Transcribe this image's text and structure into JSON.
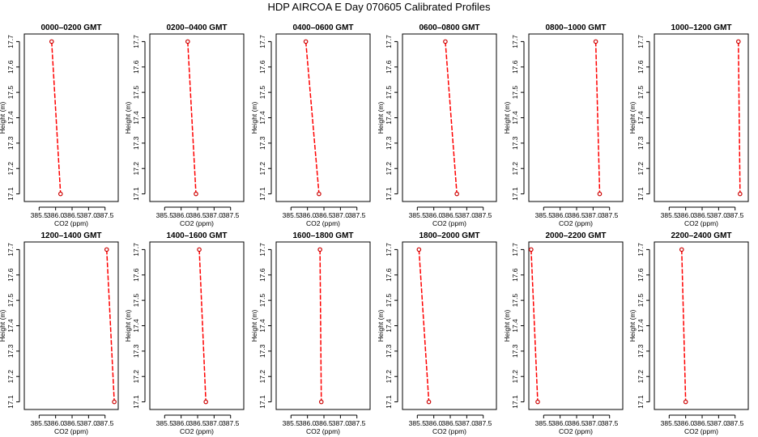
{
  "title": "HDP AIRCOA E  Day 070605  Calibrated Profiles",
  "colors": {
    "line": "#ff0000",
    "point": "#cc0000",
    "axis": "#000000"
  },
  "chart_data": [
    {
      "type": "line",
      "title": "0000–0200 GMT",
      "xlabel": "CO2 (ppm)",
      "ylabel": "Height (m)",
      "xlim": [
        385.05,
        387.9
      ],
      "ylim": [
        17.07,
        17.73
      ],
      "x_ticks": [
        "385.5",
        "386.0",
        "386.5",
        "387.0",
        "387.5"
      ],
      "y_ticks": [
        "17.1",
        "17.2",
        "17.3",
        "17.4",
        "17.5",
        "17.6",
        "17.7"
      ],
      "grid": false,
      "series": [
        {
          "x": [
            385.88,
            386.15
          ],
          "y": [
            17.7,
            17.1
          ]
        }
      ]
    },
    {
      "type": "line",
      "title": "0200–0400 GMT",
      "xlabel": "CO2 (ppm)",
      "ylabel": "Height (m)",
      "xlim": [
        385.05,
        387.9
      ],
      "ylim": [
        17.07,
        17.73
      ],
      "x_ticks": [
        "385.5",
        "386.0",
        "386.5",
        "387.0",
        "387.5"
      ],
      "y_ticks": [
        "17.1",
        "17.2",
        "17.3",
        "17.4",
        "17.5",
        "17.6",
        "17.7"
      ],
      "grid": false,
      "series": [
        {
          "x": [
            386.2,
            386.45
          ],
          "y": [
            17.7,
            17.1
          ]
        }
      ]
    },
    {
      "type": "line",
      "title": "0400–0600 GMT",
      "xlabel": "CO2 (ppm)",
      "ylabel": "Height (m)",
      "xlim": [
        385.05,
        387.9
      ],
      "ylim": [
        17.07,
        17.73
      ],
      "x_ticks": [
        "385.5",
        "386.0",
        "386.5",
        "387.0",
        "387.5"
      ],
      "y_ticks": [
        "17.1",
        "17.2",
        "17.3",
        "17.4",
        "17.5",
        "17.6",
        "17.7"
      ],
      "grid": false,
      "series": [
        {
          "x": [
            385.95,
            386.35
          ],
          "y": [
            17.7,
            17.1
          ]
        }
      ]
    },
    {
      "type": "line",
      "title": "0600–0800 GMT",
      "xlabel": "CO2 (ppm)",
      "ylabel": "Height (m)",
      "xlim": [
        385.05,
        387.9
      ],
      "ylim": [
        17.07,
        17.73
      ],
      "x_ticks": [
        "385.5",
        "386.0",
        "386.5",
        "387.0",
        "387.5"
      ],
      "y_ticks": [
        "17.1",
        "17.2",
        "17.3",
        "17.4",
        "17.5",
        "17.6",
        "17.7"
      ],
      "grid": false,
      "series": [
        {
          "x": [
            386.35,
            386.7
          ],
          "y": [
            17.7,
            17.1
          ]
        }
      ]
    },
    {
      "type": "line",
      "title": "0800–1000 GMT",
      "xlabel": "CO2 (ppm)",
      "ylabel": "Height (m)",
      "xlim": [
        385.05,
        387.9
      ],
      "ylim": [
        17.07,
        17.73
      ],
      "x_ticks": [
        "385.5",
        "386.0",
        "386.5",
        "387.0",
        "387.5"
      ],
      "y_ticks": [
        "17.1",
        "17.2",
        "17.3",
        "17.4",
        "17.5",
        "17.6",
        "17.7"
      ],
      "grid": false,
      "series": [
        {
          "x": [
            387.08,
            387.2
          ],
          "y": [
            17.7,
            17.1
          ]
        }
      ]
    },
    {
      "type": "line",
      "title": "1000–1200 GMT",
      "xlabel": "CO2 (ppm)",
      "ylabel": "Height (m)",
      "xlim": [
        385.05,
        387.9
      ],
      "ylim": [
        17.07,
        17.73
      ],
      "x_ticks": [
        "385.5",
        "386.0",
        "386.5",
        "387.0",
        "387.5"
      ],
      "y_ticks": [
        "17.1",
        "17.2",
        "17.3",
        "17.4",
        "17.5",
        "17.6",
        "17.7"
      ],
      "grid": false,
      "series": [
        {
          "x": [
            387.6,
            387.65
          ],
          "y": [
            17.7,
            17.1
          ]
        }
      ]
    },
    {
      "type": "line",
      "title": "1200–1400 GMT",
      "xlabel": "CO2 (ppm)",
      "ylabel": "Height (m)",
      "xlim": [
        385.05,
        387.9
      ],
      "ylim": [
        17.07,
        17.73
      ],
      "x_ticks": [
        "385.5",
        "386.0",
        "386.5",
        "387.0",
        "387.5"
      ],
      "y_ticks": [
        "17.1",
        "17.2",
        "17.3",
        "17.4",
        "17.5",
        "17.6",
        "17.7"
      ],
      "grid": false,
      "series": [
        {
          "x": [
            387.55,
            387.78
          ],
          "y": [
            17.7,
            17.1
          ]
        }
      ]
    },
    {
      "type": "line",
      "title": "1400–1600 GMT",
      "xlabel": "CO2 (ppm)",
      "ylabel": "Height (m)",
      "xlim": [
        385.05,
        387.9
      ],
      "ylim": [
        17.07,
        17.73
      ],
      "x_ticks": [
        "385.5",
        "386.0",
        "386.5",
        "387.0",
        "387.5"
      ],
      "y_ticks": [
        "17.1",
        "17.2",
        "17.3",
        "17.4",
        "17.5",
        "17.6",
        "17.7"
      ],
      "grid": false,
      "series": [
        {
          "x": [
            386.55,
            386.75
          ],
          "y": [
            17.7,
            17.1
          ]
        }
      ]
    },
    {
      "type": "line",
      "title": "1600–1800 GMT",
      "xlabel": "CO2 (ppm)",
      "ylabel": "Height (m)",
      "xlim": [
        385.05,
        387.9
      ],
      "ylim": [
        17.07,
        17.73
      ],
      "x_ticks": [
        "385.5",
        "386.0",
        "386.5",
        "387.0",
        "387.5"
      ],
      "y_ticks": [
        "17.1",
        "17.2",
        "17.3",
        "17.4",
        "17.5",
        "17.6",
        "17.7"
      ],
      "grid": false,
      "series": [
        {
          "x": [
            386.38,
            386.42
          ],
          "y": [
            17.7,
            17.1
          ]
        }
      ]
    },
    {
      "type": "line",
      "title": "1800–2000 GMT",
      "xlabel": "CO2 (ppm)",
      "ylabel": "Height (m)",
      "xlim": [
        385.05,
        387.9
      ],
      "ylim": [
        17.07,
        17.73
      ],
      "x_ticks": [
        "385.5",
        "386.0",
        "386.5",
        "387.0",
        "387.5"
      ],
      "y_ticks": [
        "17.1",
        "17.2",
        "17.3",
        "17.4",
        "17.5",
        "17.6",
        "17.7"
      ],
      "grid": false,
      "series": [
        {
          "x": [
            385.55,
            385.85
          ],
          "y": [
            17.7,
            17.1
          ]
        }
      ]
    },
    {
      "type": "line",
      "title": "2000–2200 GMT",
      "xlabel": "CO2 (ppm)",
      "ylabel": "Height (m)",
      "xlim": [
        385.05,
        387.9
      ],
      "ylim": [
        17.07,
        17.73
      ],
      "x_ticks": [
        "385.5",
        "386.0",
        "386.5",
        "387.0",
        "387.5"
      ],
      "y_ticks": [
        "17.1",
        "17.2",
        "17.3",
        "17.4",
        "17.5",
        "17.6",
        "17.7"
      ],
      "grid": false,
      "series": [
        {
          "x": [
            385.12,
            385.32
          ],
          "y": [
            17.7,
            17.1
          ]
        }
      ]
    },
    {
      "type": "line",
      "title": "2200–2400 GMT",
      "xlabel": "CO2 (ppm)",
      "ylabel": "Height (m)",
      "xlim": [
        385.05,
        387.9
      ],
      "ylim": [
        17.07,
        17.73
      ],
      "x_ticks": [
        "385.5",
        "386.0",
        "386.5",
        "387.0",
        "387.5"
      ],
      "y_ticks": [
        "17.1",
        "17.2",
        "17.3",
        "17.4",
        "17.5",
        "17.6",
        "17.7"
      ],
      "grid": false,
      "series": [
        {
          "x": [
            385.88,
            386.0
          ],
          "y": [
            17.7,
            17.1
          ]
        }
      ]
    }
  ]
}
